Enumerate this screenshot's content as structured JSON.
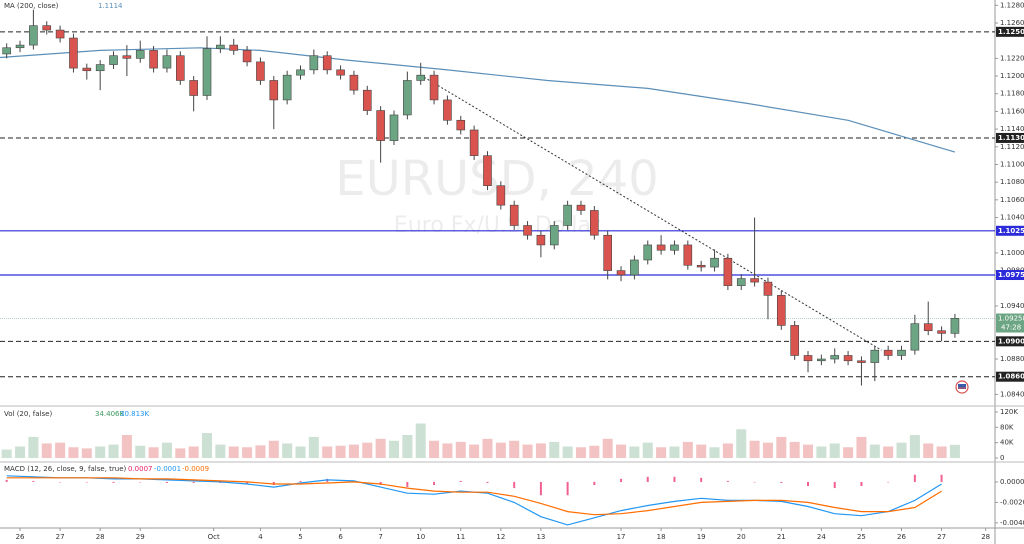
{
  "chart_data": {
    "type": "candlestick",
    "watermark": "EURUSD, 240",
    "subtitle": "Euro Fx/U.S. Dollar",
    "up_color": "#6ca583",
    "down_color": "#d9534f",
    "xlim": [
      0,
      149
    ],
    "xticks": [
      {
        "value": 3,
        "label": "26"
      },
      {
        "value": 9,
        "label": "27"
      },
      {
        "value": 15,
        "label": "28"
      },
      {
        "value": 21,
        "label": "29"
      },
      {
        "value": 32,
        "label": "Oct"
      },
      {
        "value": 39,
        "label": "4"
      },
      {
        "value": 45,
        "label": "5"
      },
      {
        "value": 51,
        "label": "6"
      },
      {
        "value": 57,
        "label": "7"
      },
      {
        "value": 63,
        "label": "10"
      },
      {
        "value": 69,
        "label": "11"
      },
      {
        "value": 75,
        "label": "12"
      },
      {
        "value": 81,
        "label": "13"
      },
      {
        "value": 93,
        "label": "17"
      },
      {
        "value": 99,
        "label": "18"
      },
      {
        "value": 105,
        "label": "19"
      },
      {
        "value": 111,
        "label": "20"
      },
      {
        "value": 117,
        "label": "21"
      },
      {
        "value": 123,
        "label": "24"
      },
      {
        "value": 129,
        "label": "25"
      },
      {
        "value": 135,
        "label": "26"
      },
      {
        "value": 141,
        "label": "27"
      },
      {
        "value": 147.6,
        "label": "28"
      }
    ],
    "ylim": [
      1.0828,
      1.1286
    ],
    "yticks": [
      {
        "value": 1.128,
        "label": "1.12800"
      },
      {
        "value": 1.126,
        "label": "1.12600"
      },
      {
        "value": 1.122,
        "label": "1.12200"
      },
      {
        "value": 1.12,
        "label": "1.12000"
      },
      {
        "value": 1.118,
        "label": "1.11800"
      },
      {
        "value": 1.116,
        "label": "1.11600"
      },
      {
        "value": 1.114,
        "label": "1.11400"
      },
      {
        "value": 1.112,
        "label": "1.11200"
      },
      {
        "value": 1.11,
        "label": "1.11000"
      },
      {
        "value": 1.108,
        "label": "1.10800"
      },
      {
        "value": 1.106,
        "label": "1.10600"
      },
      {
        "value": 1.104,
        "label": "1.10400"
      },
      {
        "value": 1.1,
        "label": "1.10000"
      },
      {
        "value": 1.098,
        "label": "1.09800"
      },
      {
        "value": 1.094,
        "label": "1.09400"
      },
      {
        "value": 1.088,
        "label": "1.08800"
      },
      {
        "value": 1.084,
        "label": "1.08400"
      }
    ],
    "grid": false,
    "x": [
      1,
      3,
      5,
      7,
      9,
      11,
      13,
      15,
      17,
      19,
      21,
      23,
      25,
      27,
      29,
      31,
      33,
      35,
      37,
      39,
      41,
      43,
      45,
      47,
      49,
      51,
      53,
      55,
      57,
      59,
      61,
      63,
      65,
      67,
      69,
      71,
      73,
      75,
      77,
      79,
      81,
      83,
      85,
      87,
      89,
      91,
      93,
      95,
      97,
      99,
      101,
      103,
      105,
      107,
      109,
      111,
      113,
      115,
      117,
      119,
      121,
      123,
      125,
      127,
      129,
      131,
      133,
      135,
      137,
      139,
      141,
      143
    ],
    "open": [
      1.1225,
      1.1232,
      1.1235,
      1.1257,
      1.1252,
      1.1243,
      1.1209,
      1.1206,
      1.1213,
      1.1223,
      1.122,
      1.1229,
      1.1209,
      1.1223,
      1.1195,
      1.1178,
      1.1231,
      1.1235,
      1.1229,
      1.1216,
      1.1195,
      1.1173,
      1.1201,
      1.1207,
      1.1223,
      1.1207,
      1.1201,
      1.1184,
      1.1161,
      1.1127,
      1.1156,
      1.1195,
      1.1201,
      1.1173,
      1.115,
      1.1139,
      1.111,
      1.1076,
      1.1054,
      1.1031,
      1.102,
      1.1009,
      1.1031,
      1.1054,
      1.1048,
      1.102,
      1.098,
      1.0975,
      1.0992,
      1.1009,
      1.1003,
      1.1009,
      1.0986,
      1.0984,
      1.0994,
      1.0963,
      1.0971,
      1.0967,
      1.0952,
      1.0918,
      1.0884,
      1.0878,
      1.088,
      1.0884,
      1.0878,
      1.0876,
      1.089,
      1.0884,
      1.089,
      1.092,
      1.0912,
      1.0909
    ],
    "high": [
      1.1237,
      1.124,
      1.1275,
      1.1262,
      1.1257,
      1.1248,
      1.1214,
      1.1218,
      1.1228,
      1.1235,
      1.124,
      1.1234,
      1.123,
      1.1228,
      1.12,
      1.1245,
      1.1245,
      1.1242,
      1.1234,
      1.1221,
      1.12,
      1.1206,
      1.1212,
      1.123,
      1.1228,
      1.1212,
      1.1206,
      1.1189,
      1.1166,
      1.1161,
      1.1205,
      1.1215,
      1.1206,
      1.1178,
      1.1155,
      1.1144,
      1.1115,
      1.1081,
      1.1059,
      1.1036,
      1.1025,
      1.1036,
      1.1059,
      1.1059,
      1.1053,
      1.1025,
      1.0985,
      1.0997,
      1.1014,
      1.102,
      1.1014,
      1.1014,
      1.0991,
      1.1004,
      1.0999,
      1.0976,
      1.104,
      1.0972,
      1.0957,
      1.0923,
      1.0889,
      1.0885,
      1.0892,
      1.0889,
      1.0883,
      1.0895,
      1.0895,
      1.0895,
      1.093,
      1.0945,
      1.0917,
      1.0931
    ],
    "low": [
      1.122,
      1.1227,
      1.123,
      1.1247,
      1.1238,
      1.1204,
      1.1196,
      1.1184,
      1.1208,
      1.12,
      1.1215,
      1.1204,
      1.1204,
      1.119,
      1.116,
      1.1173,
      1.1226,
      1.1224,
      1.1211,
      1.119,
      1.114,
      1.1168,
      1.1196,
      1.1202,
      1.1202,
      1.1196,
      1.1179,
      1.1156,
      1.1102,
      1.1122,
      1.1151,
      1.119,
      1.1168,
      1.1145,
      1.1134,
      1.1105,
      1.1071,
      1.1049,
      1.1026,
      1.1015,
      1.0995,
      1.1004,
      1.1026,
      1.1043,
      1.1015,
      1.097,
      1.0968,
      1.097,
      1.0987,
      1.0998,
      1.0998,
      1.0981,
      1.0979,
      1.0979,
      1.0958,
      1.0958,
      1.0962,
      1.0925,
      1.0913,
      1.0879,
      1.0865,
      1.0873,
      1.0875,
      1.0873,
      1.085,
      1.0855,
      1.0879,
      1.0879,
      1.0885,
      1.0907,
      1.09,
      1.0904
    ],
    "close": [
      1.1232,
      1.1235,
      1.1257,
      1.1252,
      1.1243,
      1.1209,
      1.1206,
      1.1213,
      1.1223,
      1.122,
      1.1229,
      1.1209,
      1.1223,
      1.1195,
      1.1178,
      1.1231,
      1.1235,
      1.1229,
      1.1216,
      1.1195,
      1.1173,
      1.1201,
      1.1207,
      1.1223,
      1.1207,
      1.1201,
      1.1184,
      1.1161,
      1.1127,
      1.1156,
      1.1195,
      1.1201,
      1.1173,
      1.115,
      1.1139,
      1.111,
      1.1076,
      1.1054,
      1.1031,
      1.102,
      1.1009,
      1.1031,
      1.1054,
      1.1048,
      1.102,
      1.098,
      1.0975,
      1.0992,
      1.1009,
      1.1003,
      1.1009,
      1.0986,
      1.0984,
      1.0994,
      1.0963,
      1.0971,
      1.0967,
      1.0952,
      1.0918,
      1.0884,
      1.0878,
      1.088,
      1.0884,
      1.0878,
      1.0876,
      1.089,
      1.0884,
      1.089,
      1.092,
      1.0912,
      1.0909,
      1.0926
    ],
    "ma": {
      "name": "MA (200, close)",
      "color": "#5b8fb9",
      "legend_value": "1.1114",
      "x": [
        0,
        15,
        30,
        39,
        52,
        67,
        82,
        97,
        112,
        127,
        143
      ],
      "values": [
        1.1221,
        1.1229,
        1.1232,
        1.1229,
        1.1218,
        1.1207,
        1.1195,
        1.1186,
        1.1169,
        1.115,
        1.1114
      ]
    },
    "trendline": {
      "x": [
        63,
        132
      ],
      "values": [
        1.1201,
        1.089
      ],
      "color": "#333333"
    },
    "levels": [
      {
        "value": 1.125,
        "label": "1.12500",
        "color": "#222222"
      },
      {
        "value": 1.113,
        "label": "1.11300",
        "color": "#222222"
      },
      {
        "value": 1.1025,
        "label": "1.10250",
        "color": "#2b2bd9"
      },
      {
        "value": 1.0975,
        "label": "1.09750",
        "color": "#2b2bd9"
      },
      {
        "value": 1.09,
        "label": "1.09000",
        "color": "#222222"
      },
      {
        "value": 1.086,
        "label": "1.08600",
        "color": "#222222"
      }
    ],
    "last_price": {
      "value": 1.09258,
      "label": "1.09258",
      "color": "#6ca583",
      "countdown": "47:28"
    },
    "volume": {
      "title": "Vol (20, false)",
      "legend_values": [
        "34.406K",
        "30.813K"
      ],
      "ylim": [
        -10400,
        133000
      ],
      "yticks": [
        0,
        {
          "value": 40000,
          "label": "40K"
        },
        {
          "value": 80000,
          "label": "80K"
        },
        {
          "value": 120000,
          "label": "120K"
        }
      ],
      "values": [
        22000,
        30000,
        55000,
        38000,
        40000,
        28000,
        25000,
        30000,
        35000,
        60000,
        32000,
        28000,
        40000,
        25000,
        30000,
        65000,
        35000,
        30000,
        28000,
        33000,
        45000,
        38000,
        30000,
        55000,
        30000,
        32000,
        35000,
        40000,
        50000,
        45000,
        60000,
        90000,
        45000,
        38000,
        42000,
        35000,
        50000,
        40000,
        45000,
        35000,
        38000,
        42000,
        30000,
        28000,
        32000,
        50000,
        35000,
        30000,
        40000,
        28000,
        30000,
        42000,
        35000,
        28000,
        38000,
        75000,
        45000,
        40000,
        55000,
        42000,
        35000,
        30000,
        38000,
        28000,
        55000,
        35000,
        30000,
        40000,
        60000,
        38000,
        30000,
        34406
      ]
    },
    "macd": {
      "title": "MACD (12, 26, close, 9, false, true)",
      "legend_values": [
        "0.0007",
        "-0.0001",
        "-0.0009"
      ],
      "ylim": [
        -0.0045,
        0.00185
      ],
      "yticks": [
        {
          "value": 0,
          "label": "0.0000"
        },
        {
          "value": -0.002,
          "label": "-0.0020"
        },
        {
          "value": -0.004,
          "label": "-0.0040"
        }
      ],
      "x": [
        1,
        5,
        9,
        13,
        17,
        21,
        25,
        29,
        33,
        37,
        41,
        45,
        49,
        53,
        57,
        61,
        65,
        69,
        73,
        77,
        81,
        85,
        89,
        93,
        97,
        101,
        105,
        109,
        113,
        117,
        121,
        125,
        129,
        133,
        137,
        141
      ],
      "series": [
        {
          "name": "MACD",
          "color": "#2196f3",
          "values": [
            0.0006,
            0.0005,
            0.0004,
            0.0004,
            0.0003,
            0.0003,
            0.0002,
            0.0001,
            0,
            -0.0002,
            -0.0005,
            -0.0001,
            0.0002,
            0.0001,
            -0.0005,
            -0.0011,
            -0.0012,
            -0.0009,
            -0.0011,
            -0.002,
            -0.0034,
            -0.0042,
            -0.0035,
            -0.0028,
            -0.0023,
            -0.0019,
            -0.0016,
            -0.0018,
            -0.0018,
            -0.0019,
            -0.0024,
            -0.0031,
            -0.0033,
            -0.0029,
            -0.0018,
            -0.0002
          ]
        },
        {
          "name": "Signal",
          "color": "#ff6d00",
          "values": [
            0.0004,
            0.0004,
            0.0004,
            0.0004,
            0.0004,
            0.0003,
            0.0003,
            0.0002,
            0.0001,
            0,
            -0.0002,
            -0.0002,
            -0.0001,
            0,
            -0.0002,
            -0.0006,
            -0.0009,
            -0.001,
            -0.001,
            -0.0014,
            -0.0021,
            -0.0029,
            -0.0032,
            -0.0031,
            -0.0028,
            -0.0024,
            -0.002,
            -0.0019,
            -0.0018,
            -0.0018,
            -0.002,
            -0.0025,
            -0.0029,
            -0.0029,
            -0.0025,
            -0.0009
          ]
        }
      ],
      "histogram": {
        "color": "#e91e63",
        "values": [
          0.0002,
          0.0001,
          0,
          0,
          -0.0001,
          0,
          -0.0001,
          -0.0001,
          -0.0001,
          -0.0002,
          -0.0003,
          0.0001,
          0.0003,
          0.0001,
          -0.0003,
          -0.0005,
          -0.0003,
          0.0001,
          -0.0001,
          -0.0006,
          -0.0013,
          -0.0013,
          -0.0003,
          0.0003,
          0.0005,
          0.0005,
          0.0004,
          0.0001,
          0,
          -0.0001,
          -0.0004,
          -0.0006,
          -0.0004,
          0,
          0.0007,
          0.0007
        ]
      }
    }
  }
}
